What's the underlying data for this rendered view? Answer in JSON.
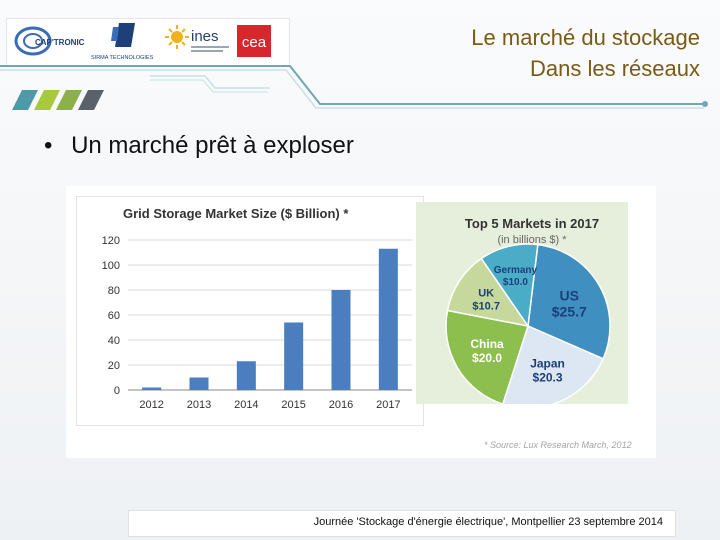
{
  "header": {
    "logos": {
      "captronic": "CAP'TRONIC",
      "sirma": "SIRMA TECHNOLOGIES",
      "ines": "ines",
      "cea": "cea"
    },
    "title_line1": "Le marché du stockage",
    "title_line2": "Dans les réseaux"
  },
  "bullet": {
    "marker": "•",
    "text": "Un marché prêt à exploser"
  },
  "footer": {
    "text": "Journée 'Stockage d'énergie électrique', Montpellier 23 septembre 2014"
  },
  "source_note": "* Source: Lux Research March, 2012",
  "colors": {
    "title": "#7a5a14",
    "bar": "#4a7ebf",
    "us": "#3f8fc1",
    "japan": "#dde6f3",
    "china": "#8dbf4f",
    "uk": "#c6d89c",
    "germany": "#4aacc6",
    "pie_bg": "#e6efdb"
  },
  "chart_data": [
    {
      "type": "bar",
      "title": "Grid Storage Market Size ($ Billion) *",
      "categories": [
        "2012",
        "2013",
        "2014",
        "2015",
        "2016",
        "2017"
      ],
      "values": [
        2,
        10,
        23,
        54,
        80,
        113
      ],
      "ylim": [
        0,
        120
      ],
      "yticks": [
        0,
        20,
        40,
        60,
        80,
        100,
        120
      ],
      "grid": true
    },
    {
      "type": "pie",
      "title": "Top 5 Markets in 2017",
      "subtitle": "(in billions $) *",
      "slices": [
        {
          "label": "US",
          "value": 25.7,
          "text": "$25.7"
        },
        {
          "label": "Japan",
          "value": 20.3,
          "text": "$20.3"
        },
        {
          "label": "China",
          "value": 20.0,
          "text": "$20.0"
        },
        {
          "label": "UK",
          "value": 10.7,
          "text": "$10.7"
        },
        {
          "label": "Germany",
          "value": 10.0,
          "text": "$10.0"
        }
      ]
    }
  ]
}
